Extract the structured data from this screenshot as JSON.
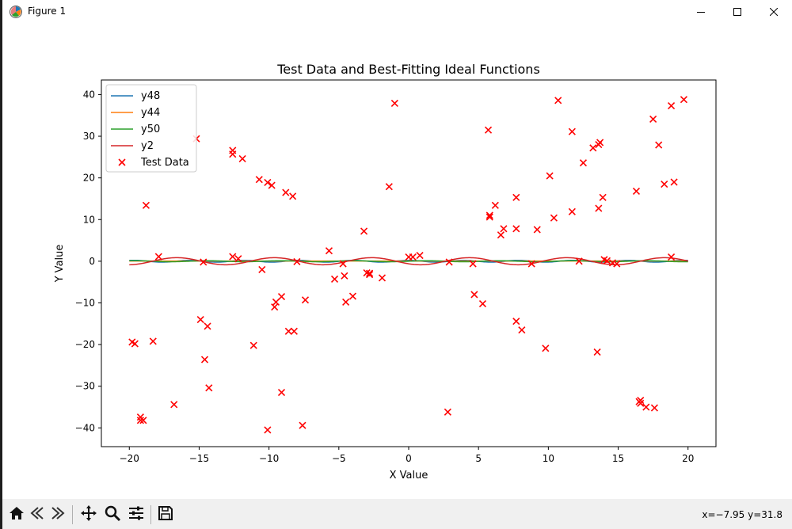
{
  "window": {
    "title": "Figure 1",
    "icon": "matplotlib-figure-icon",
    "controls": [
      "minimize-icon",
      "maximize-icon",
      "close-icon"
    ]
  },
  "toolbar": {
    "buttons": [
      "home-icon",
      "back-icon",
      "forward-icon",
      "pan-icon",
      "zoom-icon",
      "configure-subplots-icon",
      "save-icon"
    ],
    "coords": "x=−7.95 y=31.8"
  },
  "chart_data": {
    "type": "scatter",
    "title": "Test Data and Best-Fitting Ideal Functions",
    "xlabel": "X Value",
    "ylabel": "Y Value",
    "xlim": [
      -22,
      22
    ],
    "ylim": [
      -44.5,
      43.5
    ],
    "xticks": [
      -20,
      -15,
      -10,
      -5,
      0,
      5,
      10,
      15,
      20
    ],
    "yticks": [
      -40,
      -30,
      -20,
      -10,
      0,
      10,
      20,
      30,
      40
    ],
    "grid": false,
    "legend_position": "upper-left",
    "series": [
      {
        "name": "y48",
        "kind": "line",
        "color": "#1f77b4",
        "func": "y48"
      },
      {
        "name": "y44",
        "kind": "line",
        "color": "#ff7f0e",
        "func": "y44"
      },
      {
        "name": "y50",
        "kind": "line",
        "color": "#2ca02c",
        "func": "y50"
      },
      {
        "name": "y2",
        "kind": "line",
        "color": "#d62728",
        "func": "y2"
      },
      {
        "name": "Test Data",
        "kind": "scatter",
        "marker": "x",
        "color": "#ff0000",
        "points": [
          [
            -19.8,
            -19.4
          ],
          [
            -19.6,
            -19.8
          ],
          [
            -19.2,
            -37.4
          ],
          [
            -19.2,
            -38.2
          ],
          [
            -19.0,
            -38.2
          ],
          [
            -18.8,
            13.4
          ],
          [
            -18.3,
            -19.2
          ],
          [
            -17.9,
            1.1
          ],
          [
            -16.8,
            -34.4
          ],
          [
            -15.2,
            29.4
          ],
          [
            -14.9,
            -14.0
          ],
          [
            -14.7,
            -0.2
          ],
          [
            -14.6,
            -23.6
          ],
          [
            -14.4,
            -15.6
          ],
          [
            -14.3,
            -30.4
          ],
          [
            -12.6,
            26.6
          ],
          [
            -12.6,
            25.7
          ],
          [
            -12.6,
            1.1
          ],
          [
            -12.2,
            0.6
          ],
          [
            -11.9,
            24.6
          ],
          [
            -11.1,
            -20.2
          ],
          [
            -10.7,
            19.6
          ],
          [
            -10.5,
            -2.0
          ],
          [
            -10.1,
            18.9
          ],
          [
            -10.1,
            -40.5
          ],
          [
            -9.8,
            18.2
          ],
          [
            -9.6,
            -11.0
          ],
          [
            -9.5,
            -9.8
          ],
          [
            -9.1,
            -8.5
          ],
          [
            -9.1,
            -31.5
          ],
          [
            -8.8,
            16.5
          ],
          [
            -8.6,
            -16.8
          ],
          [
            -8.3,
            15.6
          ],
          [
            -8.2,
            -16.8
          ],
          [
            -8.0,
            -0.1
          ],
          [
            -7.6,
            -39.4
          ],
          [
            -7.4,
            -9.3
          ],
          [
            -5.7,
            2.5
          ],
          [
            -5.3,
            -4.3
          ],
          [
            -4.7,
            -0.6
          ],
          [
            -4.6,
            -3.5
          ],
          [
            -4.5,
            -9.8
          ],
          [
            -4.0,
            -8.4
          ],
          [
            -3.2,
            7.2
          ],
          [
            -3.0,
            -2.8
          ],
          [
            -2.8,
            -2.9
          ],
          [
            -2.8,
            -3.2
          ],
          [
            -1.9,
            -4.0
          ],
          [
            -1.4,
            17.9
          ],
          [
            -1.0,
            37.9
          ],
          [
            0.0,
            1.0
          ],
          [
            0.3,
            1.0
          ],
          [
            0.8,
            1.4
          ],
          [
            2.8,
            -36.2
          ],
          [
            2.9,
            -0.2
          ],
          [
            4.6,
            -0.6
          ],
          [
            4.7,
            -8.0
          ],
          [
            5.3,
            -10.2
          ],
          [
            5.7,
            31.5
          ],
          [
            5.8,
            11.0
          ],
          [
            5.8,
            10.6
          ],
          [
            6.2,
            13.4
          ],
          [
            6.6,
            6.3
          ],
          [
            6.8,
            7.8
          ],
          [
            7.7,
            15.3
          ],
          [
            7.7,
            -14.4
          ],
          [
            7.7,
            7.8
          ],
          [
            8.1,
            -16.5
          ],
          [
            8.8,
            -0.6
          ],
          [
            9.2,
            7.6
          ],
          [
            9.8,
            -20.9
          ],
          [
            10.1,
            20.5
          ],
          [
            10.4,
            10.4
          ],
          [
            10.7,
            38.6
          ],
          [
            11.7,
            31.1
          ],
          [
            11.7,
            11.9
          ],
          [
            12.2,
            0.0
          ],
          [
            12.5,
            23.6
          ],
          [
            13.2,
            27.2
          ],
          [
            13.5,
            -21.8
          ],
          [
            13.6,
            28.0
          ],
          [
            13.6,
            12.7
          ],
          [
            13.7,
            28.5
          ],
          [
            13.9,
            15.3
          ],
          [
            14.0,
            0.4
          ],
          [
            14.2,
            0.1
          ],
          [
            14.6,
            -0.4
          ],
          [
            14.9,
            -0.6
          ],
          [
            16.3,
            16.8
          ],
          [
            16.5,
            -33.7
          ],
          [
            16.6,
            -34.1
          ],
          [
            16.6,
            -33.4
          ],
          [
            17.0,
            -35.0
          ],
          [
            17.5,
            34.1
          ],
          [
            17.6,
            -35.2
          ],
          [
            17.9,
            27.9
          ],
          [
            18.3,
            18.5
          ],
          [
            18.8,
            1.0
          ],
          [
            18.8,
            37.3
          ],
          [
            19.0,
            19.0
          ],
          [
            19.7,
            38.8
          ]
        ]
      }
    ]
  }
}
